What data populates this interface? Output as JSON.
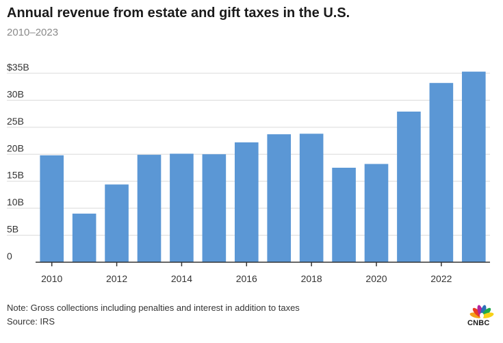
{
  "header": {
    "title": "Annual revenue from estate and gift taxes in the U.S.",
    "subtitle": "2010–2023"
  },
  "footer": {
    "note": "Note: Gross collections including penalties and interest in addition to taxes",
    "source": "Source: IRS",
    "brand": "CNBC"
  },
  "colors": {
    "bar": "#5b97d5",
    "grid": "#d9d9d9",
    "axis": "#333333",
    "logo_peacock": [
      "#f4a11b",
      "#ea3b23",
      "#b3239c",
      "#2c6fb7",
      "#1eaa4b",
      "#f7d117"
    ]
  },
  "chart_data": {
    "type": "bar",
    "title": "Annual revenue from estate and gift taxes in the U.S.",
    "subtitle": "2010–2023",
    "categories": [
      "2010",
      "2011",
      "2012",
      "2013",
      "2014",
      "2015",
      "2016",
      "2017",
      "2018",
      "2019",
      "2020",
      "2021",
      "2022",
      "2023"
    ],
    "values": [
      19.8,
      9.0,
      14.4,
      19.9,
      20.1,
      20.0,
      22.2,
      23.7,
      23.8,
      17.5,
      18.2,
      27.9,
      33.2,
      35.3
    ],
    "x_tick_labels": [
      "2010",
      "",
      "2012",
      "",
      "2014",
      "",
      "2016",
      "",
      "2018",
      "",
      "2020",
      "",
      "2022",
      ""
    ],
    "y_ticks": [
      0,
      5,
      10,
      15,
      20,
      25,
      30,
      35
    ],
    "y_tick_labels": [
      "0",
      "5B",
      "10B",
      "15B",
      "20B",
      "25B",
      "30B",
      "$35B"
    ],
    "ylim": [
      0,
      35
    ],
    "xlabel": "",
    "ylabel": "",
    "grid": true
  }
}
